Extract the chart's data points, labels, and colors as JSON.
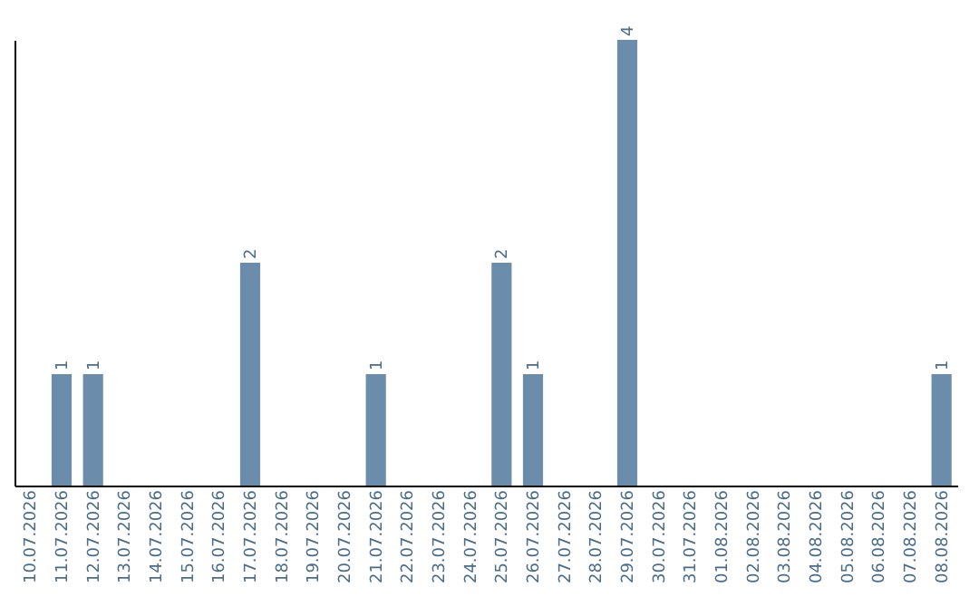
{
  "chart_data": {
    "type": "bar",
    "categories": [
      "10.07.2026",
      "11.07.2026",
      "12.07.2026",
      "13.07.2026",
      "14.07.2026",
      "15.07.2026",
      "16.07.2026",
      "17.07.2026",
      "18.07.2026",
      "19.07.2026",
      "20.07.2026",
      "21.07.2026",
      "22.07.2026",
      "23.07.2026",
      "24.07.2026",
      "25.07.2026",
      "26.07.2026",
      "27.07.2026",
      "28.07.2026",
      "29.07.2026",
      "30.07.2026",
      "31.07.2026",
      "01.08.2026",
      "02.08.2026",
      "03.08.2026",
      "04.08.2026",
      "05.08.2026",
      "06.08.2026",
      "07.08.2026",
      "08.08.2026"
    ],
    "values": [
      0,
      1,
      1,
      0,
      0,
      0,
      0,
      2,
      0,
      0,
      0,
      1,
      0,
      0,
      0,
      2,
      1,
      0,
      0,
      4,
      0,
      0,
      0,
      0,
      0,
      0,
      0,
      0,
      0,
      1
    ],
    "value_labels": [
      null,
      "1",
      "1",
      null,
      null,
      null,
      null,
      "2",
      null,
      null,
      null,
      "1",
      null,
      null,
      null,
      "2",
      "1",
      null,
      null,
      "4",
      null,
      null,
      null,
      null,
      null,
      null,
      null,
      null,
      null,
      "1"
    ],
    "color": "#6b8cab",
    "grid": false
  }
}
